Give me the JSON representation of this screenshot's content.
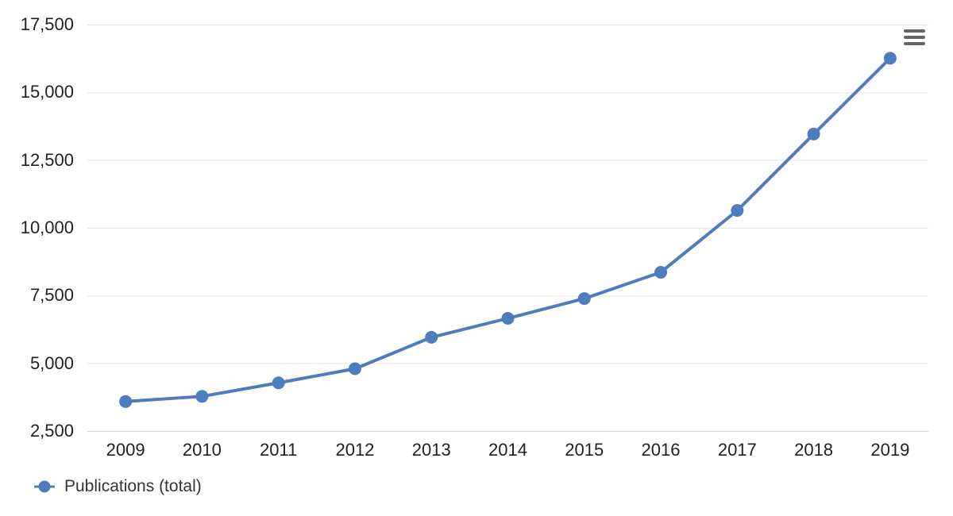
{
  "chart_data": {
    "type": "line",
    "title": "",
    "xlabel": "",
    "ylabel": "",
    "categories": [
      "2009",
      "2010",
      "2011",
      "2012",
      "2013",
      "2014",
      "2015",
      "2016",
      "2017",
      "2018",
      "2019"
    ],
    "series": [
      {
        "name": "Publications (total)",
        "color": "#4e7cbf",
        "values": [
          3590,
          3780,
          4280,
          4800,
          5960,
          6660,
          7390,
          8360,
          10640,
          13460,
          16260
        ]
      }
    ],
    "ylim": [
      2500,
      17500
    ],
    "yticks": {
      "values": [
        2500,
        5000,
        7500,
        10000,
        12500,
        15000,
        17500
      ],
      "labels": [
        "2,500",
        "5,000",
        "7,500",
        "10,000",
        "12,500",
        "15,000",
        "17,500"
      ]
    },
    "grid": true,
    "legend_position": "bottom-left",
    "colors": {
      "series": "#4e7cbf",
      "gridline": "#e6e6e6",
      "axis_line": "#ccd6eb",
      "tick_text": "#212121",
      "legend_text": "#333333",
      "menu_icon": "#666666",
      "background": "#ffffff"
    },
    "icons": {
      "context_menu": "hamburger-menu-icon"
    }
  }
}
